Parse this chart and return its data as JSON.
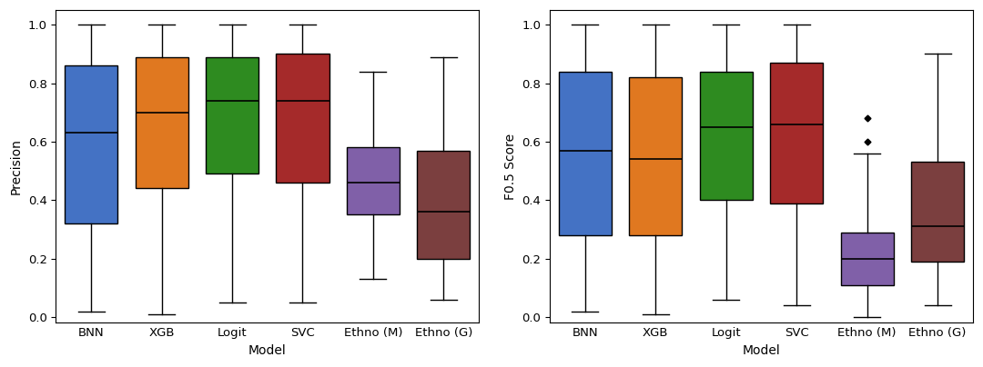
{
  "categories": [
    "BNN",
    "XGB",
    "Logit",
    "SVC",
    "Ethno (M)",
    "Ethno (G)"
  ],
  "colors": [
    "#4472C4",
    "#E07820",
    "#2E8B20",
    "#A52A2A",
    "#8060A8",
    "#7B3F3F"
  ],
  "plot1": {
    "ylabel": "Precision",
    "xlabel": "Model",
    "ylim": [
      -0.02,
      1.05
    ],
    "yticks": [
      0.0,
      0.2,
      0.4,
      0.6,
      0.8,
      1.0
    ],
    "boxes": [
      {
        "q1": 0.32,
        "median": 0.63,
        "q3": 0.86,
        "whislo": 0.02,
        "whishi": 1.0
      },
      {
        "q1": 0.44,
        "median": 0.7,
        "q3": 0.89,
        "whislo": 0.01,
        "whishi": 1.0
      },
      {
        "q1": 0.49,
        "median": 0.74,
        "q3": 0.89,
        "whislo": 0.05,
        "whishi": 1.0
      },
      {
        "q1": 0.46,
        "median": 0.74,
        "q3": 0.9,
        "whislo": 0.05,
        "whishi": 1.0
      },
      {
        "q1": 0.35,
        "median": 0.46,
        "q3": 0.58,
        "whislo": 0.13,
        "whishi": 0.84
      },
      {
        "q1": 0.2,
        "median": 0.36,
        "q3": 0.57,
        "whislo": 0.06,
        "whishi": 0.89
      }
    ],
    "fliers": [
      [],
      [],
      [],
      [],
      [],
      []
    ]
  },
  "plot2": {
    "ylabel": "F0.5 Score",
    "xlabel": "Model",
    "ylim": [
      -0.02,
      1.05
    ],
    "yticks": [
      0.0,
      0.2,
      0.4,
      0.6,
      0.8,
      1.0
    ],
    "boxes": [
      {
        "q1": 0.28,
        "median": 0.57,
        "q3": 0.84,
        "whislo": 0.02,
        "whishi": 1.0
      },
      {
        "q1": 0.28,
        "median": 0.54,
        "q3": 0.82,
        "whislo": 0.01,
        "whishi": 1.0
      },
      {
        "q1": 0.4,
        "median": 0.65,
        "q3": 0.84,
        "whislo": 0.06,
        "whishi": 1.0
      },
      {
        "q1": 0.39,
        "median": 0.66,
        "q3": 0.87,
        "whislo": 0.04,
        "whishi": 1.0
      },
      {
        "q1": 0.11,
        "median": 0.2,
        "q3": 0.29,
        "whislo": 0.0,
        "whishi": 0.56
      },
      {
        "q1": 0.19,
        "median": 0.31,
        "q3": 0.53,
        "whislo": 0.04,
        "whishi": 0.9
      }
    ],
    "fliers": [
      [],
      [],
      [],
      [],
      [
        0.68,
        0.6
      ],
      []
    ]
  },
  "figsize": [
    10.8,
    4.04
  ],
  "dpi": 100,
  "box_width": 0.75,
  "xlabel_fontsize": 10,
  "ylabel_fontsize": 10,
  "tick_fontsize": 9.5
}
